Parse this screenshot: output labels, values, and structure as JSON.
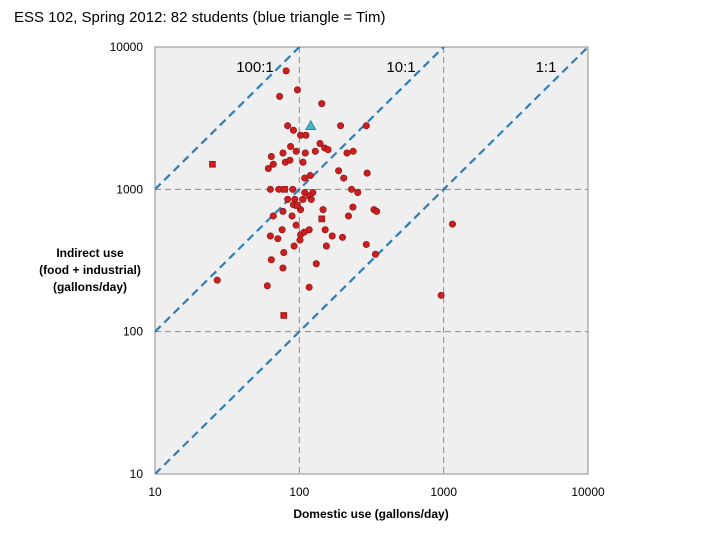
{
  "title": "ESS 102, Spring 2012: 82 students (blue triangle = Tim)",
  "colors": {
    "plot_bg": "#efefef",
    "ratio_line": "#2e7fb8",
    "point": "#cc1f1f",
    "point_edge": "#8a0f0f",
    "highlight": "#42b6cf"
  },
  "chart_data": {
    "type": "scatter",
    "title": "ESS 102, Spring 2012: 82 students (blue triangle = Tim)",
    "xlabel": "Domestic use (gallons/day)",
    "ylabel": [
      "Indirect use",
      "(food + industrial)",
      "(gallons/day)"
    ],
    "xscale": "log",
    "yscale": "log",
    "xlim": [
      10,
      10000
    ],
    "ylim": [
      10,
      10000
    ],
    "xticks": [
      "10",
      "100",
      "1000",
      "10000"
    ],
    "yticks": [
      "10",
      "100",
      "1000",
      "10000"
    ],
    "grid": "dashed at 100 and 1000",
    "ratio_lines": [
      {
        "label": "100:1",
        "ratio": 100
      },
      {
        "label": "10:1",
        "ratio": 10
      },
      {
        "label": "1:1",
        "ratio": 1
      }
    ],
    "highlight": {
      "name": "Tim",
      "marker": "triangle",
      "x": 120,
      "y": 2800
    },
    "points": [
      [
        81,
        6800,
        "o"
      ],
      [
        97,
        5000,
        "o"
      ],
      [
        73,
        4500,
        "o"
      ],
      [
        143,
        4000,
        "o"
      ],
      [
        83,
        2800,
        "o"
      ],
      [
        91,
        2600,
        "o"
      ],
      [
        102,
        2400,
        "o"
      ],
      [
        111,
        2400,
        "o"
      ],
      [
        193,
        2800,
        "o"
      ],
      [
        291,
        2800,
        "o"
      ],
      [
        87,
        2000,
        "o"
      ],
      [
        139,
        2100,
        "o"
      ],
      [
        150,
        1950,
        "o"
      ],
      [
        158,
        1900,
        "o"
      ],
      [
        77,
        1800,
        "o"
      ],
      [
        95,
        1850,
        "o"
      ],
      [
        110,
        1800,
        "o"
      ],
      [
        129,
        1850,
        "o"
      ],
      [
        236,
        1850,
        "o"
      ],
      [
        214,
        1800,
        "o"
      ],
      [
        64,
        1700,
        "o"
      ],
      [
        66,
        1500,
        "o"
      ],
      [
        61,
        1400,
        "o"
      ],
      [
        80,
        1550,
        "o"
      ],
      [
        86,
        1600,
        "o"
      ],
      [
        106,
        1550,
        "o"
      ],
      [
        187,
        1350,
        "o"
      ],
      [
        295,
        1300,
        "o"
      ],
      [
        109,
        1200,
        "o"
      ],
      [
        119,
        1250,
        "o"
      ],
      [
        203,
        1200,
        "o"
      ],
      [
        63,
        1000,
        "o"
      ],
      [
        72,
        1000,
        "o"
      ],
      [
        90,
        1000,
        "o"
      ],
      [
        109,
        950,
        "o"
      ],
      [
        124,
        950,
        "o"
      ],
      [
        230,
        1000,
        "o"
      ],
      [
        254,
        950,
        "o"
      ],
      [
        83,
        850,
        "o"
      ],
      [
        93,
        850,
        "o"
      ],
      [
        106,
        850,
        "o"
      ],
      [
        117,
        900,
        "o"
      ],
      [
        121,
        850,
        "o"
      ],
      [
        91,
        780,
        "o"
      ],
      [
        77,
        700,
        "o"
      ],
      [
        89,
        650,
        "o"
      ],
      [
        102,
        720,
        "o"
      ],
      [
        66,
        650,
        "o"
      ],
      [
        146,
        720,
        "o"
      ],
      [
        235,
        750,
        "o"
      ],
      [
        329,
        720,
        "o"
      ],
      [
        343,
        700,
        "o"
      ],
      [
        219,
        650,
        "o"
      ],
      [
        1150,
        570,
        "o"
      ],
      [
        95,
        560,
        "o"
      ],
      [
        76,
        520,
        "o"
      ],
      [
        117,
        520,
        "o"
      ],
      [
        151,
        520,
        "o"
      ],
      [
        169,
        470,
        "o"
      ],
      [
        63,
        470,
        "o"
      ],
      [
        71,
        450,
        "o"
      ],
      [
        102,
        480,
        "o"
      ],
      [
        108,
        500,
        "o"
      ],
      [
        199,
        460,
        "o"
      ],
      [
        92,
        400,
        "o"
      ],
      [
        101,
        440,
        "o"
      ],
      [
        154,
        400,
        "o"
      ],
      [
        291,
        410,
        "o"
      ],
      [
        78,
        360,
        "o"
      ],
      [
        64,
        320,
        "o"
      ],
      [
        77,
        280,
        "o"
      ],
      [
        131,
        300,
        "o"
      ],
      [
        337,
        350,
        "o"
      ],
      [
        27,
        230,
        "o"
      ],
      [
        60,
        210,
        "o"
      ],
      [
        117,
        205,
        "o"
      ],
      [
        960,
        180,
        "o"
      ],
      [
        25,
        1500,
        "s"
      ],
      [
        79,
        1000,
        "s"
      ],
      [
        97,
        770,
        "s"
      ],
      [
        143,
        620,
        "s"
      ],
      [
        78,
        130,
        "s"
      ]
    ]
  }
}
